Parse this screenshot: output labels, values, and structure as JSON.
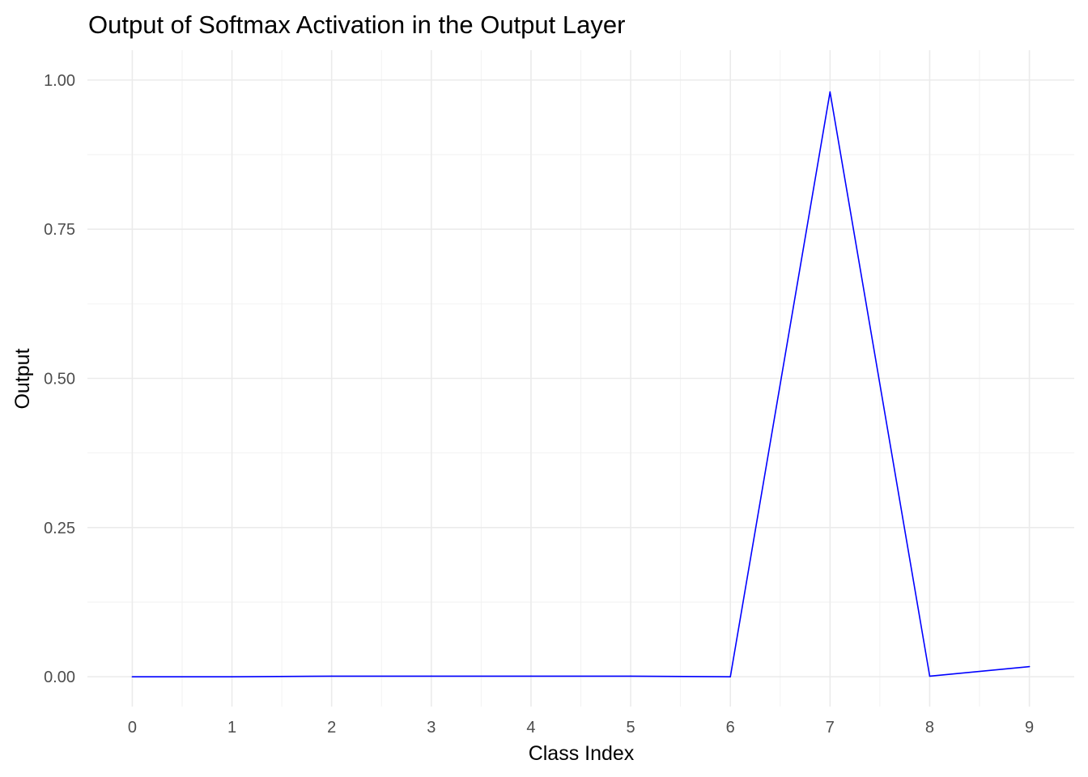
{
  "chart_data": {
    "type": "line",
    "title": "Output of Softmax Activation in the Output Layer",
    "xlabel": "Class Index",
    "ylabel": "Output",
    "xlim": [
      -0.45,
      9.45
    ],
    "ylim": [
      -0.05,
      1.05
    ],
    "x_ticks": [
      0,
      1,
      2,
      3,
      4,
      5,
      6,
      7,
      8,
      9
    ],
    "x_tick_labels": [
      "0",
      "1",
      "2",
      "3",
      "4",
      "5",
      "6",
      "7",
      "8",
      "9"
    ],
    "y_ticks": [
      0,
      0.25,
      0.5,
      0.75,
      1.0
    ],
    "y_tick_labels": [
      "0.00",
      "0.25",
      "0.50",
      "0.75",
      "1.00"
    ],
    "grid": true,
    "legend": "none",
    "line_color": "#0000ff",
    "x": [
      0,
      1,
      2,
      3,
      4,
      5,
      6,
      7,
      8,
      9
    ],
    "y": [
      0.0,
      0.0,
      0.001,
      0.001,
      0.001,
      0.001,
      0.0,
      0.98,
      0.001,
      0.017
    ]
  }
}
